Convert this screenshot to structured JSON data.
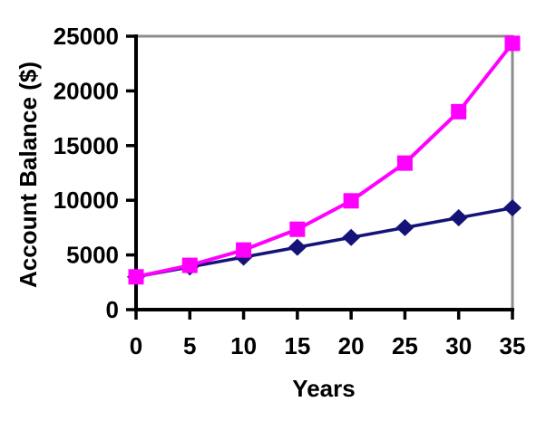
{
  "chart_data": {
    "type": "line",
    "title": "",
    "xlabel": "Years",
    "ylabel": "Account Balance ($)",
    "x": [
      0,
      5,
      10,
      15,
      20,
      25,
      30,
      35
    ],
    "xlim": [
      0,
      35
    ],
    "ylim": [
      0,
      25000
    ],
    "x_ticks": [
      0,
      5,
      10,
      15,
      20,
      25,
      30,
      35
    ],
    "y_ticks": [
      0,
      5000,
      10000,
      15000,
      20000,
      25000
    ],
    "grid": false,
    "legend_position": "none",
    "series": [
      {
        "name": "linear-growth-navy-diamonds",
        "marker": "diamond",
        "color": "#141478",
        "line_width": 3.5,
        "values": [
          3000,
          3900,
          4800,
          5700,
          6600,
          7500,
          8400,
          9300
        ]
      },
      {
        "name": "exponential-growth-magenta-squares",
        "marker": "square",
        "color": "#FF00FF",
        "line_width": 4,
        "values": [
          3000,
          4050,
          5450,
          7350,
          9950,
          13400,
          18100,
          24350
        ]
      }
    ],
    "axis_color": "#000000",
    "border_color": "#8C8C8C",
    "background": "#FFFFFF",
    "text_color": "#000000"
  }
}
